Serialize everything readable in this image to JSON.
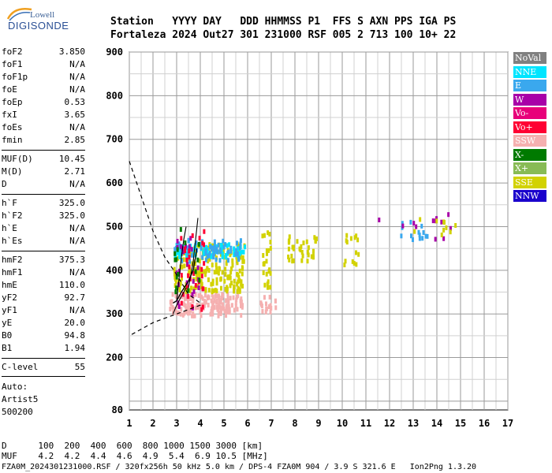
{
  "logo": {
    "lowell": "Lowell",
    "digisonde": "DIGISONDE"
  },
  "header": {
    "row1": "Station   YYYY DAY   DDD HHMMSS P1  FFS S AXN PPS IGA PS",
    "row2": "Fortaleza 2024 Out27 301 231000 RSF 005 2 713 100 10+ 22"
  },
  "params_group1": [
    {
      "name": "foF2",
      "value": "3.850"
    },
    {
      "name": "foF1",
      "value": "N/A"
    },
    {
      "name": "foF1p",
      "value": "N/A"
    },
    {
      "name": "foE",
      "value": "N/A"
    },
    {
      "name": "foEp",
      "value": "0.53"
    },
    {
      "name": "fxI",
      "value": "3.65"
    },
    {
      "name": "foEs",
      "value": "N/A"
    },
    {
      "name": "fmin",
      "value": "2.85"
    }
  ],
  "params_group2": [
    {
      "name": "MUF(D)",
      "value": "10.45"
    },
    {
      "name": "M(D)",
      "value": "2.71"
    },
    {
      "name": "D",
      "value": "N/A"
    }
  ],
  "params_group3": [
    {
      "name": "h`F",
      "value": "325.0"
    },
    {
      "name": "h`F2",
      "value": "325.0"
    },
    {
      "name": "h`E",
      "value": "N/A"
    },
    {
      "name": "h`Es",
      "value": "N/A"
    }
  ],
  "params_group4": [
    {
      "name": "hmF2",
      "value": "375.3"
    },
    {
      "name": "hmF1",
      "value": "N/A"
    },
    {
      "name": "hmE",
      "value": "110.0"
    },
    {
      "name": "yF2",
      "value": "92.7"
    },
    {
      "name": "yF1",
      "value": "N/A"
    },
    {
      "name": "yE",
      "value": "20.0"
    },
    {
      "name": "B0",
      "value": "94.8"
    },
    {
      "name": "B1",
      "value": "1.94"
    }
  ],
  "params_group5": [
    {
      "name": "C-level",
      "value": "55"
    }
  ],
  "auto": {
    "line1": "Auto:",
    "line2": "Artist5",
    "line3": "500200"
  },
  "legend": [
    {
      "label": "NoVal",
      "color": "#808080"
    },
    {
      "label": "NNE",
      "color": "#00e5ff"
    },
    {
      "label": "E",
      "color": "#3aa8ee"
    },
    {
      "label": "W",
      "color": "#a800a8"
    },
    {
      "label": "Vo-",
      "color": "#e8007a"
    },
    {
      "label": "Vo+",
      "color": "#ff0033"
    },
    {
      "label": "SSW",
      "color": "#f5b0b0"
    },
    {
      "label": "X-",
      "color": "#007a00"
    },
    {
      "label": "X+",
      "color": "#88bb55"
    },
    {
      "label": "SSE",
      "color": "#d2d200"
    },
    {
      "label": "NNW",
      "color": "#1a00cc"
    }
  ],
  "footer": {
    "line1": "D      100  200  400  600  800 1000 1500 3000 [km]",
    "line2": "MUF    4.2  4.2  4.4  4.6  4.9  5.4  6.9 10.5 [MHz]",
    "line3": "FZA0M_2024301231000.RSF / 320fx256h 50 kHz 5.0 km / DPS-4 FZA0M 904 / 3.9 S 321.6 E   Ion2Png 1.3.20"
  },
  "chart_data": {
    "type": "scatter",
    "title": "",
    "xlabel": "",
    "ylabel": "",
    "xlim": [
      1,
      17
    ],
    "ylim": [
      80,
      900
    ],
    "xticks": [
      "1",
      "2",
      "3",
      "4",
      "5",
      "6",
      "7",
      "8",
      "9",
      "10",
      "11",
      "12",
      "13",
      "14",
      "15",
      "16",
      "17"
    ],
    "yticks": [
      "80",
      "200",
      "300",
      "400",
      "500",
      "600",
      "700",
      "800",
      "900"
    ],
    "grid": true,
    "legend_position": "right",
    "clusters": [
      {
        "name": "SSW",
        "color": "#f5b0b0",
        "x": [
          2.7,
          5.8
        ],
        "y": [
          295,
          345
        ],
        "n": 170
      },
      {
        "name": "SSE",
        "color": "#d2d200",
        "x": [
          2.9,
          5.9
        ],
        "y": [
          350,
          460
        ],
        "n": 200
      },
      {
        "name": "NNE",
        "color": "#00e5ff",
        "x": [
          2.9,
          5.9
        ],
        "y": [
          430,
          460
        ],
        "n": 80
      },
      {
        "name": "E",
        "color": "#3aa8ee",
        "x": [
          2.9,
          5.8
        ],
        "y": [
          420,
          470
        ],
        "n": 60
      },
      {
        "name": "W",
        "color": "#a800a8",
        "x": [
          3.0,
          4.0
        ],
        "y": [
          300,
          480
        ],
        "n": 25
      },
      {
        "name": "Vo+",
        "color": "#ff0033",
        "x": [
          3.0,
          4.2
        ],
        "y": [
          300,
          500
        ],
        "n": 30
      },
      {
        "name": "X-",
        "color": "#007a00",
        "x": [
          2.9,
          4.0
        ],
        "y": [
          340,
          500
        ],
        "n": 15
      },
      {
        "name": "SSE",
        "color": "#d2d200",
        "x": [
          6.6,
          7.0
        ],
        "y": [
          360,
          490
        ],
        "n": 25
      },
      {
        "name": "SSE",
        "color": "#d2d200",
        "x": [
          7.7,
          9.0
        ],
        "y": [
          420,
          480
        ],
        "n": 35
      },
      {
        "name": "SSE",
        "color": "#d2d200",
        "x": [
          10.0,
          10.7
        ],
        "y": [
          410,
          480
        ],
        "n": 14
      },
      {
        "name": "SSW",
        "color": "#f5b0b0",
        "x": [
          6.5,
          7.2
        ],
        "y": [
          300,
          340
        ],
        "n": 18
      },
      {
        "name": "E",
        "color": "#3aa8ee",
        "x": [
          12.4,
          13.6
        ],
        "y": [
          470,
          515
        ],
        "n": 14
      },
      {
        "name": "W",
        "color": "#a800a8",
        "x": [
          11.0,
          15.2
        ],
        "y": [
          470,
          535
        ],
        "n": 12
      },
      {
        "name": "SSE",
        "color": "#d2d200",
        "x": [
          12.5,
          14.8
        ],
        "y": [
          480,
          520
        ],
        "n": 10
      }
    ],
    "profile_curve": [
      [
        2.85,
        325
      ],
      [
        3.0,
        330
      ],
      [
        3.2,
        350
      ],
      [
        3.5,
        375
      ],
      [
        3.7,
        400
      ],
      [
        3.8,
        430
      ],
      [
        3.85,
        450
      ]
    ],
    "trace_curves": [
      [
        [
          3.0,
          330
        ],
        [
          3.1,
          380
        ],
        [
          3.2,
          430
        ],
        [
          3.3,
          470
        ],
        [
          3.4,
          500
        ]
      ],
      [
        [
          3.5,
          360
        ],
        [
          3.7,
          420
        ],
        [
          3.8,
          470
        ],
        [
          3.9,
          520
        ]
      ],
      [
        [
          2.85,
          300
        ],
        [
          3.0,
          320
        ],
        [
          3.4,
          360
        ]
      ]
    ],
    "dashed_curve": [
      [
        1.0,
        650
      ],
      [
        1.5,
        570
      ],
      [
        2.0,
        490
      ],
      [
        2.5,
        430
      ],
      [
        3.0,
        390
      ],
      [
        3.5,
        345
      ],
      [
        4.0,
        325
      ],
      [
        4.0,
        320
      ],
      [
        3.5,
        310
      ],
      [
        3.0,
        300
      ],
      [
        2.5,
        290
      ],
      [
        2.0,
        280
      ],
      [
        1.5,
        265
      ],
      [
        1.0,
        250
      ]
    ]
  }
}
